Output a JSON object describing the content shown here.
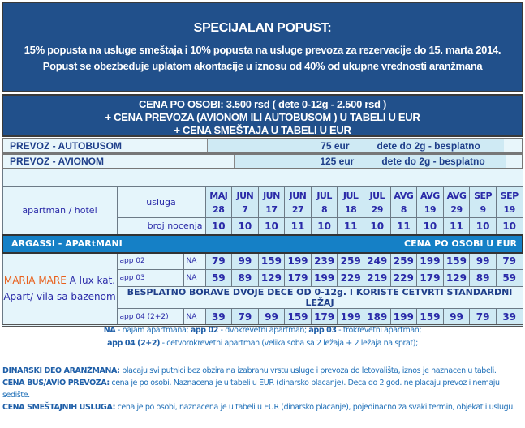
{
  "promo": {
    "title": "SPECIJALAN POPUST:",
    "line1": "15% popusta na usluge smeštaja i 10% popusta na usluge prevoza za rezervacije do 15. marta 2014.",
    "line2": "Popust se obezbeduje uplatom akontacije u iznosu od 40% od ukupne vrednosti aranžmana"
  },
  "price": {
    "line1": "CENA PO OSOBI: 3.500 rsd ( dete 0-12g - 2.500 rsd )",
    "line2": "+ CENA PREVOZA (AVIONOM ILI AUTOBUSOM ) U TABELI U EUR",
    "line3": "+ CENA SMEŠTAJA U TABELI U EUR"
  },
  "transport": [
    {
      "label": "PREVOZ - AUTOBUSOM",
      "price": "75 eur",
      "child": "dete do 2g - besplatno"
    },
    {
      "label": "PREVOZ - AVIONOM",
      "price": "125 eur",
      "child": "dete do 2g - besplatno"
    }
  ],
  "table": {
    "col_hotel": "apartman / hotel",
    "col_service": "usluga",
    "nights_label": "broj nocenja",
    "dates": [
      [
        "MAJ",
        "28"
      ],
      [
        "JUN",
        "7"
      ],
      [
        "JUN",
        "17"
      ],
      [
        "JUN",
        "27"
      ],
      [
        "JUL",
        "8"
      ],
      [
        "JUL",
        "18"
      ],
      [
        "JUL",
        "29"
      ],
      [
        "AVG",
        "8"
      ],
      [
        "AVG",
        "19"
      ],
      [
        "AVG",
        "29"
      ],
      [
        "SEP",
        "9"
      ],
      [
        "SEP",
        "19"
      ]
    ],
    "nights": [
      "10",
      "10",
      "10",
      "11",
      "10",
      "11",
      "10",
      "11",
      "10",
      "11",
      "10",
      "10"
    ],
    "section": "ARGASSI - APARtMANI",
    "section_right": "CENA PO OSOBI U EUR",
    "hotel_name": "MARIA MARE",
    "hotel_rest": " A lux kat.",
    "hotel_line2": "Apart/ vila sa bazenom",
    "rows": [
      {
        "service": "app 02",
        "na": "NA",
        "prices": [
          "79",
          "99",
          "159",
          "199",
          "239",
          "259",
          "249",
          "259",
          "199",
          "159",
          "99",
          "79"
        ]
      },
      {
        "service": "app 03",
        "na": "NA",
        "prices": [
          "59",
          "89",
          "129",
          "179",
          "199",
          "229",
          "219",
          "229",
          "179",
          "129",
          "89",
          "59"
        ]
      },
      {
        "service": "app 04 (2+2)",
        "na": "NA",
        "prices": [
          "39",
          "79",
          "99",
          "159",
          "179",
          "199",
          "189",
          "199",
          "159",
          "99",
          "79",
          "39"
        ]
      }
    ],
    "free_note": "BESPLATNO BORAVE DVOJE DECE OD 0-12g. I KORISTE CETVRTI STANDARDNI LEŽAJ"
  },
  "notes": {
    "na_k": "NA",
    "na_v": " - najam apartmana;  ",
    "a2_k": "app 02",
    "a2_v": " - dvokrevetni apartman;  ",
    "a3_k": "app 03",
    "a3_v": " - trokrevetni apartman;",
    "a4_k": "app 04 (2+2)",
    "a4_v": " - cetvorokrevetni apartman (velika soba sa 2 ležaja + 2 ležaja na sprat);",
    "d_k": "DINARSKI DEO ARANŽMANA:",
    "d_v": "  placaju svi putnici bez obzira na izabranu vrstu usluge i prevoza do letovališta, iznos je naznacen u tabeli.",
    "b_k": "CENA BUS/AVIO PREVOZA:",
    "b_v": "  cena je po osobi. Naznacena je u tabeli u EUR (dinarsko placanje). Deca do 2 god. ne placaju prevoz i nemaju sedište.",
    "s_k": "CENA SMEŠTAJNIH USLUGA:",
    "s_v": "  cena je po osobi, naznacena je u tabeli u EUR (dinarsko placanje), pojedinacno za svaki termin, objekat i uslugu."
  },
  "colors": {
    "banner": "#21508b",
    "section": "#1580c6",
    "hotel_name": "#e8601c",
    "text": "#2a2aa8"
  }
}
